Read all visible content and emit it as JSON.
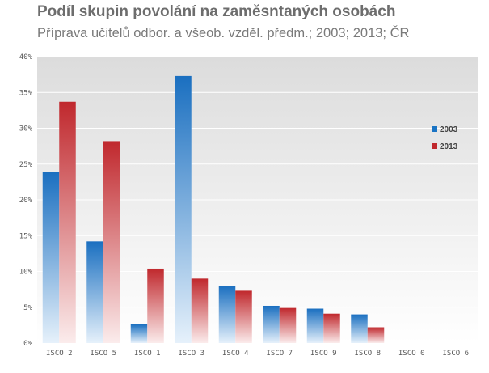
{
  "title": "Podíl skupin povolání na zaměsntaných osobách",
  "subtitle": "Příprava učitelů odbor. a všeob. vzděl. předm.; 2003; 2013; ČR",
  "chart_data": {
    "type": "bar",
    "categories": [
      "ISCO 2",
      "ISCO 5",
      "ISCO 1",
      "ISCO 3",
      "ISCO 4",
      "ISCO 7",
      "ISCO 9",
      "ISCO 8",
      "ISCO 0",
      "ISCO 6"
    ],
    "series": [
      {
        "name": "2003",
        "values": [
          23.9,
          14.2,
          2.6,
          37.3,
          8.0,
          5.2,
          4.8,
          4.0,
          0,
          0
        ],
        "color": "#1a74c4"
      },
      {
        "name": "2013",
        "values": [
          33.7,
          28.2,
          10.4,
          9.0,
          7.3,
          4.9,
          4.1,
          2.2,
          0,
          0
        ],
        "color": "#c0282d"
      }
    ],
    "ylim": [
      0,
      40
    ],
    "yticks": [
      "0%",
      "5%",
      "10%",
      "15%",
      "20%",
      "25%",
      "30%",
      "35%",
      "40%"
    ],
    "grid": true,
    "legend_position": "right"
  }
}
